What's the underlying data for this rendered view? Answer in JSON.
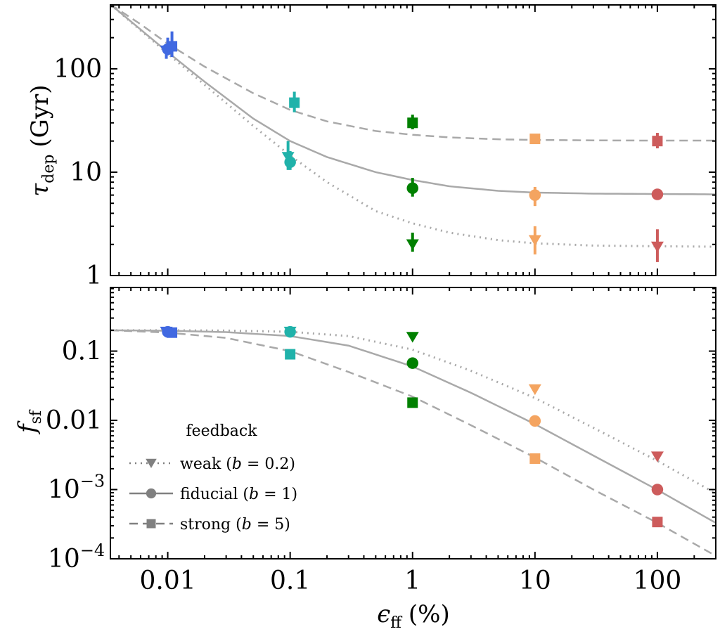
{
  "chart_data": [
    {
      "type": "scatter",
      "panel": "top",
      "ylabel": "τ_dep (Gyr)",
      "ylabel_main": "τ",
      "ylabel_sub": "dep",
      "ylabel_unit": "(Gyr)",
      "yscale": "log",
      "xscale": "log",
      "xlim": [
        0.0034,
        300
      ],
      "ylim": [
        1,
        415
      ],
      "yticks": [
        1,
        10,
        100
      ],
      "ytick_labels": [
        "1",
        "10",
        "100"
      ],
      "series": [
        {
          "name": "weak (b = 0.2)",
          "marker": "triangle-down",
          "line": "dotted",
          "points": [
            [
              0.01,
              150
            ],
            [
              0.1,
              14
            ],
            [
              1,
              2.0
            ],
            [
              10,
              2.2
            ],
            [
              100,
              1.9
            ]
          ],
          "curve": [
            [
              0.0034,
              420
            ],
            [
              0.006,
              235
            ],
            [
              0.01,
              140
            ],
            [
              0.02,
              70
            ],
            [
              0.05,
              28
            ],
            [
              0.1,
              14.5
            ],
            [
              0.2,
              8
            ],
            [
              0.5,
              4.2
            ],
            [
              1,
              3.2
            ],
            [
              2,
              2.6
            ],
            [
              5,
              2.2
            ],
            [
              10,
              2.05
            ],
            [
              30,
              1.95
            ],
            [
              100,
              1.92
            ],
            [
              300,
              1.9
            ]
          ]
        },
        {
          "name": "fiducial (b = 1)",
          "marker": "circle",
          "line": "solid",
          "points": [
            [
              0.01,
              155
            ],
            [
              0.1,
              12.5
            ],
            [
              1,
              7.0
            ],
            [
              10,
              6.0
            ],
            [
              100,
              6.1
            ]
          ],
          "curve": [
            [
              0.0034,
              420
            ],
            [
              0.006,
              240
            ],
            [
              0.01,
              145
            ],
            [
              0.02,
              75
            ],
            [
              0.05,
              33
            ],
            [
              0.1,
              20
            ],
            [
              0.2,
              14
            ],
            [
              0.5,
              10
            ],
            [
              1,
              8.4
            ],
            [
              2,
              7.3
            ],
            [
              5,
              6.6
            ],
            [
              10,
              6.35
            ],
            [
              30,
              6.2
            ],
            [
              100,
              6.15
            ],
            [
              300,
              6.1
            ]
          ]
        },
        {
          "name": "strong (b = 5)",
          "marker": "square",
          "line": "dashed",
          "points": [
            [
              0.01,
              165
            ],
            [
              0.1,
              47
            ],
            [
              1,
              30
            ],
            [
              10,
              21
            ],
            [
              100,
              20
            ]
          ],
          "curve": [
            [
              0.0034,
              420
            ],
            [
              0.006,
              270
            ],
            [
              0.01,
              175
            ],
            [
              0.02,
              105
            ],
            [
              0.05,
              58
            ],
            [
              0.1,
              40
            ],
            [
              0.2,
              31
            ],
            [
              0.5,
              25
            ],
            [
              1,
              23
            ],
            [
              2,
              21.7
            ],
            [
              5,
              20.8
            ],
            [
              10,
              20.5
            ],
            [
              30,
              20.3
            ],
            [
              100,
              20.2
            ],
            [
              300,
              20.2
            ]
          ]
        }
      ],
      "error_bars": [
        {
          "series": "weak (b = 0.2)",
          "x": 0.01,
          "y": 150,
          "lo": 125,
          "hi": 175
        },
        {
          "series": "weak (b = 0.2)",
          "x": 0.1,
          "y": 14,
          "lo": 10.5,
          "hi": 20
        },
        {
          "series": "weak (b = 0.2)",
          "x": 1,
          "y": 2.0,
          "lo": 1.7,
          "hi": 2.6
        },
        {
          "series": "weak (b = 0.2)",
          "x": 10,
          "y": 2.2,
          "lo": 1.6,
          "hi": 3.0
        },
        {
          "series": "weak (b = 0.2)",
          "x": 100,
          "y": 1.9,
          "lo": 1.35,
          "hi": 2.8
        },
        {
          "series": "fiducial (b = 1)",
          "x": 0.01,
          "y": 155,
          "lo": 135,
          "hi": 200
        },
        {
          "series": "fiducial (b = 1)",
          "x": 0.1,
          "y": 12.5,
          "lo": 10.5,
          "hi": 16
        },
        {
          "series": "fiducial (b = 1)",
          "x": 1,
          "y": 7.0,
          "lo": 5.8,
          "hi": 8.8
        },
        {
          "series": "fiducial (b = 1)",
          "x": 10,
          "y": 6.0,
          "lo": 4.7,
          "hi": 7.2
        },
        {
          "series": "fiducial (b = 1)",
          "x": 100,
          "y": 6.1,
          "lo": 6.1,
          "hi": 6.1
        },
        {
          "series": "strong (b = 5)",
          "x": 0.01,
          "y": 165,
          "lo": 130,
          "hi": 230
        },
        {
          "series": "strong (b = 5)",
          "x": 0.1,
          "y": 47,
          "lo": 38,
          "hi": 60
        },
        {
          "series": "strong (b = 5)",
          "x": 1,
          "y": 30,
          "lo": 26,
          "hi": 36
        },
        {
          "series": "strong (b = 5)",
          "x": 10,
          "y": 21,
          "lo": 21,
          "hi": 21
        },
        {
          "series": "strong (b = 5)",
          "x": 100,
          "y": 20,
          "lo": 17,
          "hi": 24
        }
      ]
    },
    {
      "type": "scatter",
      "panel": "bottom",
      "xlabel": "ε_ff (%)",
      "xlabel_main": "ϵ",
      "xlabel_sub": "ff",
      "xlabel_unit": "(%)",
      "ylabel": "f_sf",
      "ylabel_main": "f",
      "ylabel_sub": "sf",
      "yscale": "log",
      "xscale": "log",
      "xlim": [
        0.0034,
        300
      ],
      "ylim": [
        0.0001,
        0.83
      ],
      "xticks": [
        0.01,
        0.1,
        1,
        10,
        100
      ],
      "xtick_labels": [
        "0.01",
        "0.1",
        "1",
        "10",
        "100"
      ],
      "yticks": [
        0.1,
        0.01,
        0.001,
        0.0001
      ],
      "ytick_labels": [
        {
          "base": "0.1",
          "exp": ""
        },
        {
          "base": "0.01",
          "exp": ""
        },
        {
          "base": "10",
          "exp": "−3"
        },
        {
          "base": "10",
          "exp": "−4"
        }
      ],
      "series": [
        {
          "name": "weak (b = 0.2)",
          "marker": "triangle-down",
          "line": "dotted",
          "points": [
            [
              0.01,
              0.19
            ],
            [
              0.1,
              0.19
            ],
            [
              1,
              0.16
            ],
            [
              10,
              0.028
            ],
            [
              100,
              0.003
            ]
          ],
          "curve": [
            [
              0.0034,
              0.2
            ],
            [
              0.01,
              0.2
            ],
            [
              0.03,
              0.198
            ],
            [
              0.1,
              0.19
            ],
            [
              0.3,
              0.165
            ],
            [
              1,
              0.105
            ],
            [
              3,
              0.052
            ],
            [
              10,
              0.021
            ],
            [
              30,
              0.0078
            ],
            [
              100,
              0.0026
            ],
            [
              300,
              0.00088
            ]
          ]
        },
        {
          "name": "fiducial (b = 1)",
          "marker": "circle",
          "line": "solid",
          "points": [
            [
              0.01,
              0.19
            ],
            [
              0.1,
              0.19
            ],
            [
              1,
              0.067
            ],
            [
              10,
              0.0098
            ],
            [
              100,
              0.001
            ]
          ],
          "curve": [
            [
              0.0034,
              0.2
            ],
            [
              0.01,
              0.197
            ],
            [
              0.03,
              0.188
            ],
            [
              0.1,
              0.165
            ],
            [
              0.3,
              0.12
            ],
            [
              1,
              0.06
            ],
            [
              3,
              0.025
            ],
            [
              10,
              0.0088
            ],
            [
              30,
              0.0031
            ],
            [
              100,
              0.00099
            ],
            [
              300,
              0.00033
            ]
          ]
        },
        {
          "name": "strong (b = 5)",
          "marker": "square",
          "line": "dashed",
          "points": [
            [
              0.01,
              0.185
            ],
            [
              0.1,
              0.09
            ],
            [
              1,
              0.018
            ],
            [
              10,
              0.0028
            ],
            [
              100,
              0.00034
            ]
          ],
          "curve": [
            [
              0.0034,
              0.2
            ],
            [
              0.01,
              0.185
            ],
            [
              0.03,
              0.155
            ],
            [
              0.1,
              0.1
            ],
            [
              0.3,
              0.05
            ],
            [
              1,
              0.022
            ],
            [
              3,
              0.0085
            ],
            [
              10,
              0.0029
            ],
            [
              30,
              0.001
            ],
            [
              100,
              0.00033
            ],
            [
              300,
              0.00011
            ]
          ]
        }
      ]
    }
  ],
  "point_colors": [
    "#4169e1",
    "#20b2aa",
    "#008000",
    "#f4a460",
    "#cd5c5c"
  ],
  "curve_color": "#a9a9a9",
  "legend": {
    "title": "feedback",
    "placement": "lower-left of bottom panel",
    "entries": [
      {
        "label_main": "weak (",
        "label_var": "b",
        "label_rest": " = 0.2)",
        "marker": "triangle-down",
        "line": "dotted"
      },
      {
        "label_main": "fiducial (",
        "label_var": "b",
        "label_rest": " = 1)",
        "marker": "circle",
        "line": "solid"
      },
      {
        "label_main": "strong (",
        "label_var": "b",
        "label_rest": " = 5)",
        "marker": "square",
        "line": "dashed"
      }
    ]
  }
}
